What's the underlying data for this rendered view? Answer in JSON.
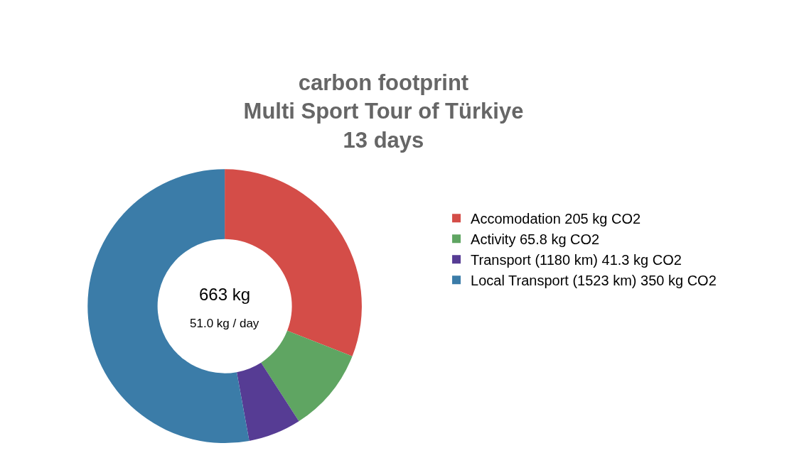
{
  "chart_data": {
    "type": "donut",
    "title": "carbon footprint\nMulti Sport Tour of Türkiye\n13 days",
    "categories": [
      "Accomodation 205 kg CO2",
      "Activity 65.8 kg CO2",
      "Transport (1180 km) 41.3 kg CO2",
      "Local Transport (1523 km) 350 kg CO2"
    ],
    "values": [
      205,
      65.8,
      41.3,
      350
    ],
    "colors": [
      "#d44d48",
      "#5fa562",
      "#563c94",
      "#3b7ca8"
    ],
    "annotations": [
      "663 kg",
      "51.0 kg / day"
    ],
    "legend": "right"
  }
}
